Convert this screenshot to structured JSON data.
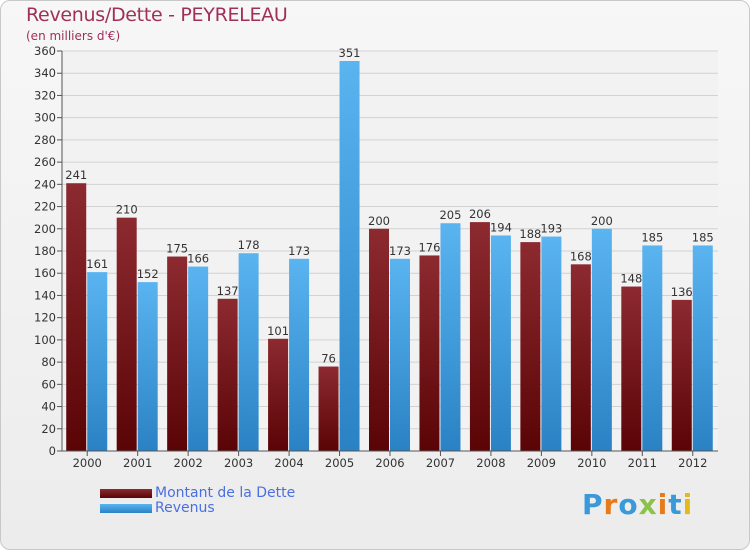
{
  "title": "Revenus/Dette - PEYRELEAU",
  "subtitle": "(en milliers d'€)",
  "logo": {
    "text": "Proxiti",
    "letters": [
      {
        "ch": "P",
        "color": "#3a9ad9"
      },
      {
        "ch": "r",
        "color": "#e87a1a"
      },
      {
        "ch": "o",
        "color": "#3a9ad9"
      },
      {
        "ch": "x",
        "color": "#8bc34a"
      },
      {
        "ch": "i",
        "color": "#e87a1a"
      },
      {
        "ch": "t",
        "color": "#3a9ad9"
      },
      {
        "ch": "i",
        "color": "#e8b81a"
      }
    ]
  },
  "legend": [
    {
      "label": "Montant de la Dette",
      "color": "#6b0d14"
    },
    {
      "label": "Revenus",
      "color": "#3a9ad9"
    }
  ],
  "chart_data": {
    "type": "bar",
    "title": "Revenus/Dette - PEYRELEAU",
    "subtitle": "(en milliers d'€)",
    "categories": [
      "2000",
      "2001",
      "2002",
      "2003",
      "2004",
      "2005",
      "2006",
      "2007",
      "2008",
      "2009",
      "2010",
      "2011",
      "2012"
    ],
    "series": [
      {
        "name": "Montant de la Dette",
        "color": "#7a1a20",
        "values": [
          241,
          210,
          175,
          137,
          101,
          76,
          200,
          176,
          206,
          188,
          168,
          148,
          136
        ]
      },
      {
        "name": "Revenus",
        "color": "#4aa8e8",
        "values": [
          161,
          152,
          166,
          178,
          173,
          351,
          173,
          205,
          194,
          193,
          200,
          185,
          185
        ]
      }
    ],
    "ylim": [
      0,
      360
    ],
    "yticks": [
      0,
      20,
      40,
      60,
      80,
      100,
      120,
      140,
      160,
      180,
      200,
      220,
      240,
      260,
      280,
      300,
      320,
      340,
      360
    ],
    "grid": true,
    "legend_position": "bottom-left"
  }
}
